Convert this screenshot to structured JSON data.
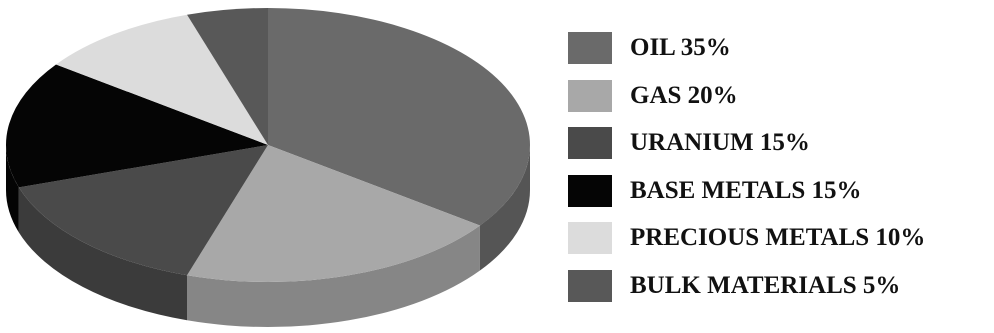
{
  "chart_data": {
    "type": "pie",
    "style": "3d",
    "categories": [
      "OIL",
      "GAS",
      "URANIUM",
      "BASE METALS",
      "PRECIOUS METALS",
      "BULK MATERIALS"
    ],
    "values": [
      35,
      20,
      15,
      15,
      10,
      5
    ],
    "unit": "%",
    "legend_labels": [
      "OIL 35%",
      "GAS 20%",
      "URANIUM 15%",
      "BASE METALS 15%",
      "PRECIOUS METALS 10%",
      "BULK MATERIALS 5%"
    ],
    "colors": [
      "#6a6a6a",
      "#a8a8a8",
      "#4a4a4a",
      "#050505",
      "#dcdcdc",
      "#585858"
    ],
    "legend_position": "right"
  }
}
